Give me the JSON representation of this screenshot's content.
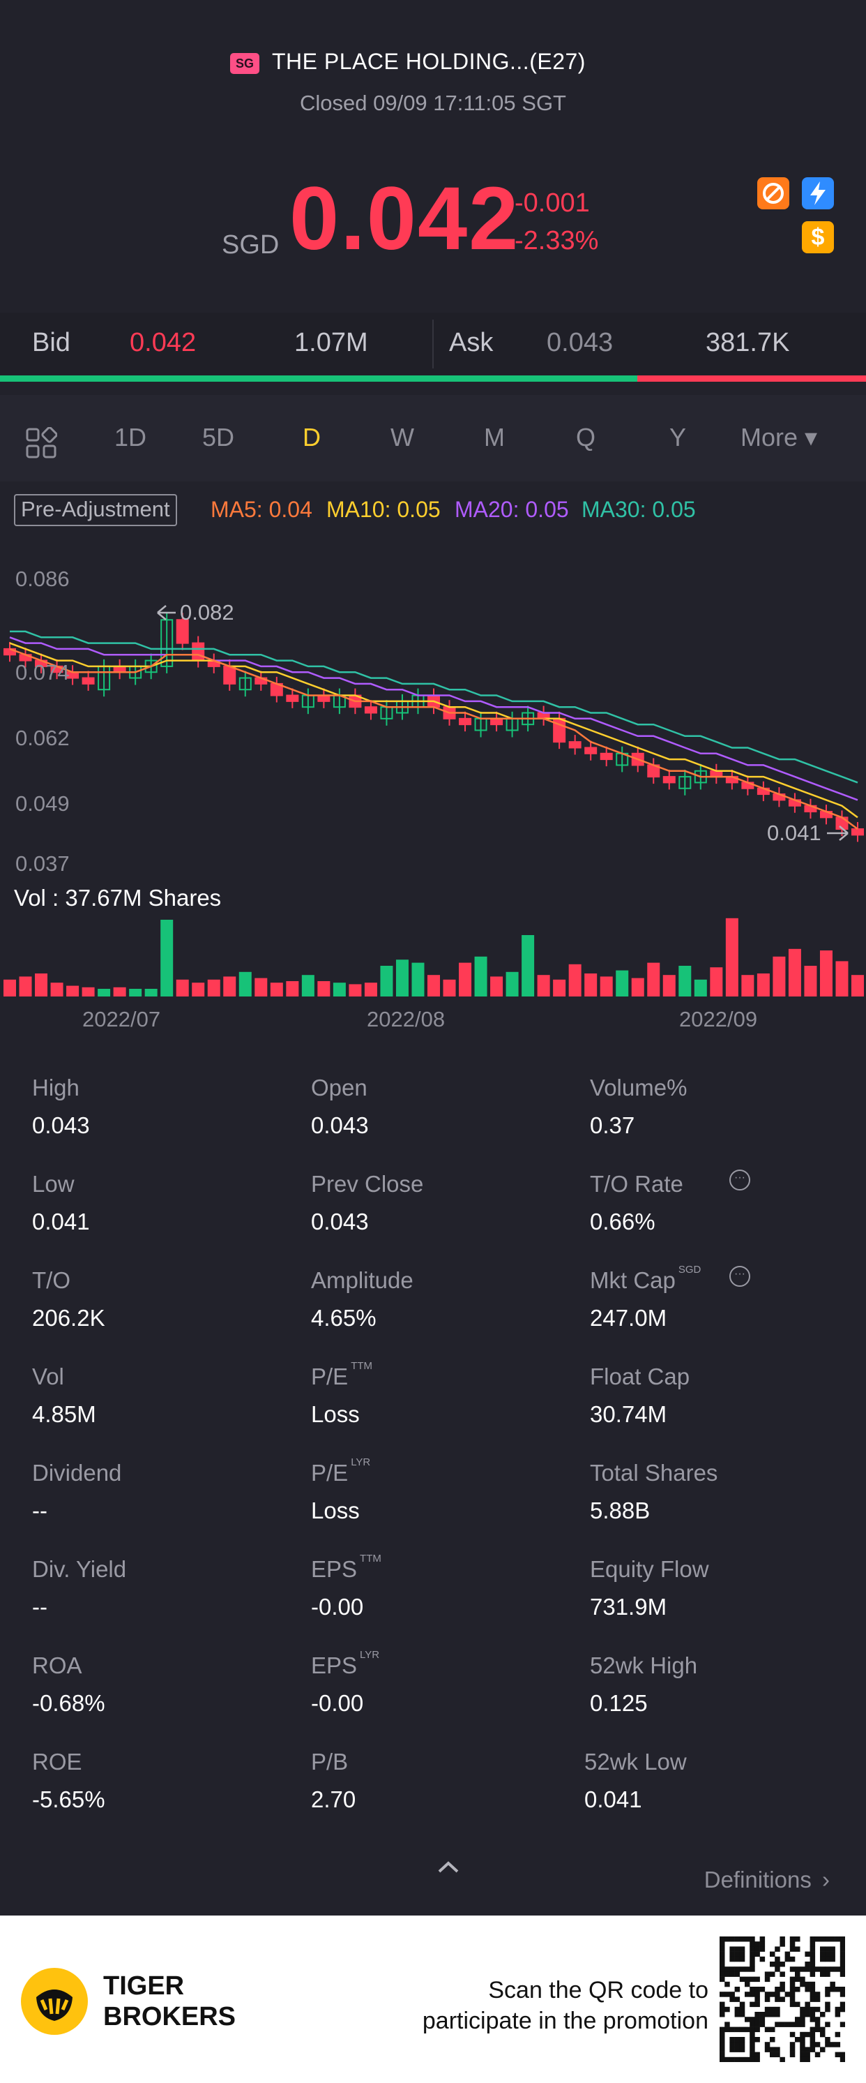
{
  "header": {
    "market_badge": "SG",
    "title": "THE PLACE HOLDING...(E27)",
    "status": "Closed 09/09 17:11:05 SGT",
    "currency": "SGD",
    "price": "0.042",
    "change": "-0.001",
    "change_pct": "-2.33%",
    "dollar_glyph": "$"
  },
  "quote": {
    "bid_label": "Bid",
    "bid_price": "0.042",
    "bid_size": "1.07M",
    "ask_label": "Ask",
    "ask_price": "0.043",
    "ask_size": "381.7K",
    "bid_ratio": 0.736
  },
  "tabs": [
    "1D",
    "5D",
    "D",
    "W",
    "M",
    "Q",
    "Y",
    "More ▾"
  ],
  "active_tab": "D",
  "indicators": {
    "adjust": "Pre-Adjustment",
    "ma5": "MA5: 0.04",
    "ma10": "MA10: 0.05",
    "ma20": "MA20: 0.05",
    "ma30": "MA30: 0.05"
  },
  "colors": {
    "up": "#17c278",
    "down": "#ff3b55",
    "ma5": "#ff7a3c",
    "ma10": "#ffcf2e",
    "ma20": "#b05cff",
    "ma30": "#30c2a6"
  },
  "chart_data": {
    "type": "line",
    "y_ticks": [
      "0.086",
      "0.074",
      "0.062",
      "0.049",
      "0.037"
    ],
    "x_ticks": [
      "2022/07",
      "2022/08",
      "2022/09"
    ],
    "high_marker": "0.082",
    "low_marker": "0.041",
    "volume_label": "Vol  : 37.67M Shares",
    "ylim": [
      0.037,
      0.086
    ],
    "close": [
      0.073,
      0.072,
      0.071,
      0.07,
      0.069,
      0.068,
      0.071,
      0.07,
      0.071,
      0.072,
      0.079,
      0.075,
      0.072,
      0.071,
      0.068,
      0.069,
      0.068,
      0.066,
      0.065,
      0.066,
      0.065,
      0.066,
      0.064,
      0.063,
      0.064,
      0.065,
      0.066,
      0.064,
      0.062,
      0.061,
      0.062,
      0.061,
      0.062,
      0.063,
      0.062,
      0.058,
      0.057,
      0.056,
      0.055,
      0.056,
      0.054,
      0.052,
      0.051,
      0.052,
      0.053,
      0.052,
      0.051,
      0.05,
      0.049,
      0.048,
      0.047,
      0.046,
      0.045,
      0.043,
      0.042
    ],
    "up": [
      false,
      false,
      false,
      false,
      false,
      false,
      true,
      false,
      true,
      true,
      true,
      false,
      false,
      false,
      false,
      true,
      false,
      false,
      false,
      true,
      false,
      true,
      false,
      false,
      true,
      true,
      true,
      false,
      false,
      false,
      true,
      false,
      true,
      true,
      false,
      false,
      false,
      false,
      false,
      true,
      false,
      false,
      false,
      true,
      true,
      false,
      false,
      false,
      false,
      false,
      false,
      false,
      false,
      false,
      false
    ],
    "ma5": [
      0.074,
      0.073,
      0.072,
      0.071,
      0.07,
      0.07,
      0.07,
      0.07,
      0.07,
      0.071,
      0.073,
      0.073,
      0.073,
      0.072,
      0.071,
      0.07,
      0.069,
      0.068,
      0.067,
      0.066,
      0.066,
      0.066,
      0.065,
      0.065,
      0.064,
      0.064,
      0.064,
      0.064,
      0.063,
      0.063,
      0.062,
      0.062,
      0.062,
      0.062,
      0.062,
      0.061,
      0.06,
      0.058,
      0.057,
      0.056,
      0.055,
      0.054,
      0.053,
      0.053,
      0.052,
      0.052,
      0.052,
      0.051,
      0.05,
      0.049,
      0.048,
      0.047,
      0.046,
      0.045,
      0.043
    ],
    "ma10": [
      0.075,
      0.074,
      0.073,
      0.072,
      0.072,
      0.071,
      0.071,
      0.071,
      0.071,
      0.071,
      0.072,
      0.072,
      0.072,
      0.072,
      0.071,
      0.071,
      0.07,
      0.07,
      0.069,
      0.068,
      0.067,
      0.066,
      0.066,
      0.065,
      0.065,
      0.065,
      0.065,
      0.065,
      0.064,
      0.064,
      0.063,
      0.063,
      0.062,
      0.062,
      0.062,
      0.062,
      0.061,
      0.06,
      0.059,
      0.058,
      0.057,
      0.056,
      0.055,
      0.055,
      0.054,
      0.053,
      0.053,
      0.052,
      0.052,
      0.051,
      0.05,
      0.049,
      0.048,
      0.047,
      0.045
    ],
    "ma20": [
      0.076,
      0.075,
      0.075,
      0.074,
      0.074,
      0.074,
      0.073,
      0.073,
      0.073,
      0.073,
      0.073,
      0.073,
      0.073,
      0.072,
      0.072,
      0.072,
      0.071,
      0.071,
      0.07,
      0.07,
      0.069,
      0.069,
      0.068,
      0.068,
      0.067,
      0.067,
      0.066,
      0.066,
      0.066,
      0.065,
      0.065,
      0.064,
      0.064,
      0.064,
      0.063,
      0.063,
      0.062,
      0.062,
      0.061,
      0.06,
      0.059,
      0.059,
      0.058,
      0.057,
      0.056,
      0.056,
      0.055,
      0.054,
      0.054,
      0.053,
      0.052,
      0.051,
      0.05,
      0.049,
      0.048
    ],
    "ma30": [
      0.077,
      0.077,
      0.076,
      0.076,
      0.076,
      0.075,
      0.075,
      0.075,
      0.075,
      0.074,
      0.074,
      0.074,
      0.074,
      0.074,
      0.073,
      0.073,
      0.073,
      0.072,
      0.072,
      0.071,
      0.071,
      0.07,
      0.07,
      0.069,
      0.069,
      0.068,
      0.068,
      0.068,
      0.067,
      0.067,
      0.066,
      0.066,
      0.065,
      0.065,
      0.065,
      0.064,
      0.064,
      0.063,
      0.063,
      0.062,
      0.061,
      0.061,
      0.06,
      0.059,
      0.059,
      0.058,
      0.057,
      0.057,
      0.056,
      0.055,
      0.055,
      0.054,
      0.053,
      0.052,
      0.051
    ],
    "volume": [
      0.22,
      0.26,
      0.3,
      0.18,
      0.14,
      0.12,
      0.1,
      0.12,
      0.1,
      0.1,
      1.0,
      0.22,
      0.18,
      0.22,
      0.26,
      0.32,
      0.24,
      0.18,
      0.2,
      0.28,
      0.2,
      0.18,
      0.16,
      0.18,
      0.4,
      0.48,
      0.44,
      0.28,
      0.22,
      0.44,
      0.52,
      0.26,
      0.32,
      0.8,
      0.28,
      0.22,
      0.42,
      0.3,
      0.26,
      0.34,
      0.24,
      0.44,
      0.28,
      0.4,
      0.22,
      0.38,
      1.02,
      0.28,
      0.3,
      0.52,
      0.62,
      0.4,
      0.6,
      0.46,
      0.28
    ]
  },
  "stats": [
    {
      "label": "High",
      "value": "0.043",
      "sup": ""
    },
    {
      "label": "Open",
      "value": "0.043",
      "sup": ""
    },
    {
      "label": "Volume%",
      "value": "0.37",
      "sup": ""
    },
    {
      "label": "Low",
      "value": "0.041",
      "sup": ""
    },
    {
      "label": "Prev Close",
      "value": "0.043",
      "sup": ""
    },
    {
      "label": "T/O Rate",
      "value": "0.66%",
      "sup": ""
    },
    {
      "label": "T/O",
      "value": "206.2K",
      "sup": ""
    },
    {
      "label": "Amplitude",
      "value": "4.65%",
      "sup": ""
    },
    {
      "label": "Mkt Cap",
      "value": "247.0M",
      "sup": "SGD"
    },
    {
      "label": "Vol",
      "value": "4.85M",
      "sup": ""
    },
    {
      "label": "P/E",
      "value": "Loss",
      "sup": "TTM"
    },
    {
      "label": "Float Cap",
      "value": "30.74M",
      "sup": ""
    },
    {
      "label": "Dividend",
      "value": "--",
      "sup": ""
    },
    {
      "label": "P/E",
      "value": "Loss",
      "sup": "LYR"
    },
    {
      "label": "Total Shares",
      "value": "5.88B",
      "sup": ""
    },
    {
      "label": "Div. Yield",
      "value": "--",
      "sup": ""
    },
    {
      "label": "EPS",
      "value": "-0.00",
      "sup": "TTM"
    },
    {
      "label": "Equity Flow",
      "value": "731.9M",
      "sup": ""
    },
    {
      "label": "ROA",
      "value": "-0.68%",
      "sup": ""
    },
    {
      "label": "EPS",
      "value": "-0.00",
      "sup": "LYR"
    },
    {
      "label": "52wk High",
      "value": "0.125",
      "sup": ""
    },
    {
      "label": "ROE",
      "value": "-5.65%",
      "sup": ""
    },
    {
      "label": "P/B",
      "value": "2.70",
      "sup": ""
    },
    {
      "label": "52wk Low",
      "value": "0.041",
      "sup": ""
    }
  ],
  "definitions": "Definitions",
  "footer": {
    "brand_line1": "TIGER",
    "brand_line2": "BROKERS",
    "promo_line1": "Scan the QR code to",
    "promo_line2": "participate in the promotion"
  }
}
